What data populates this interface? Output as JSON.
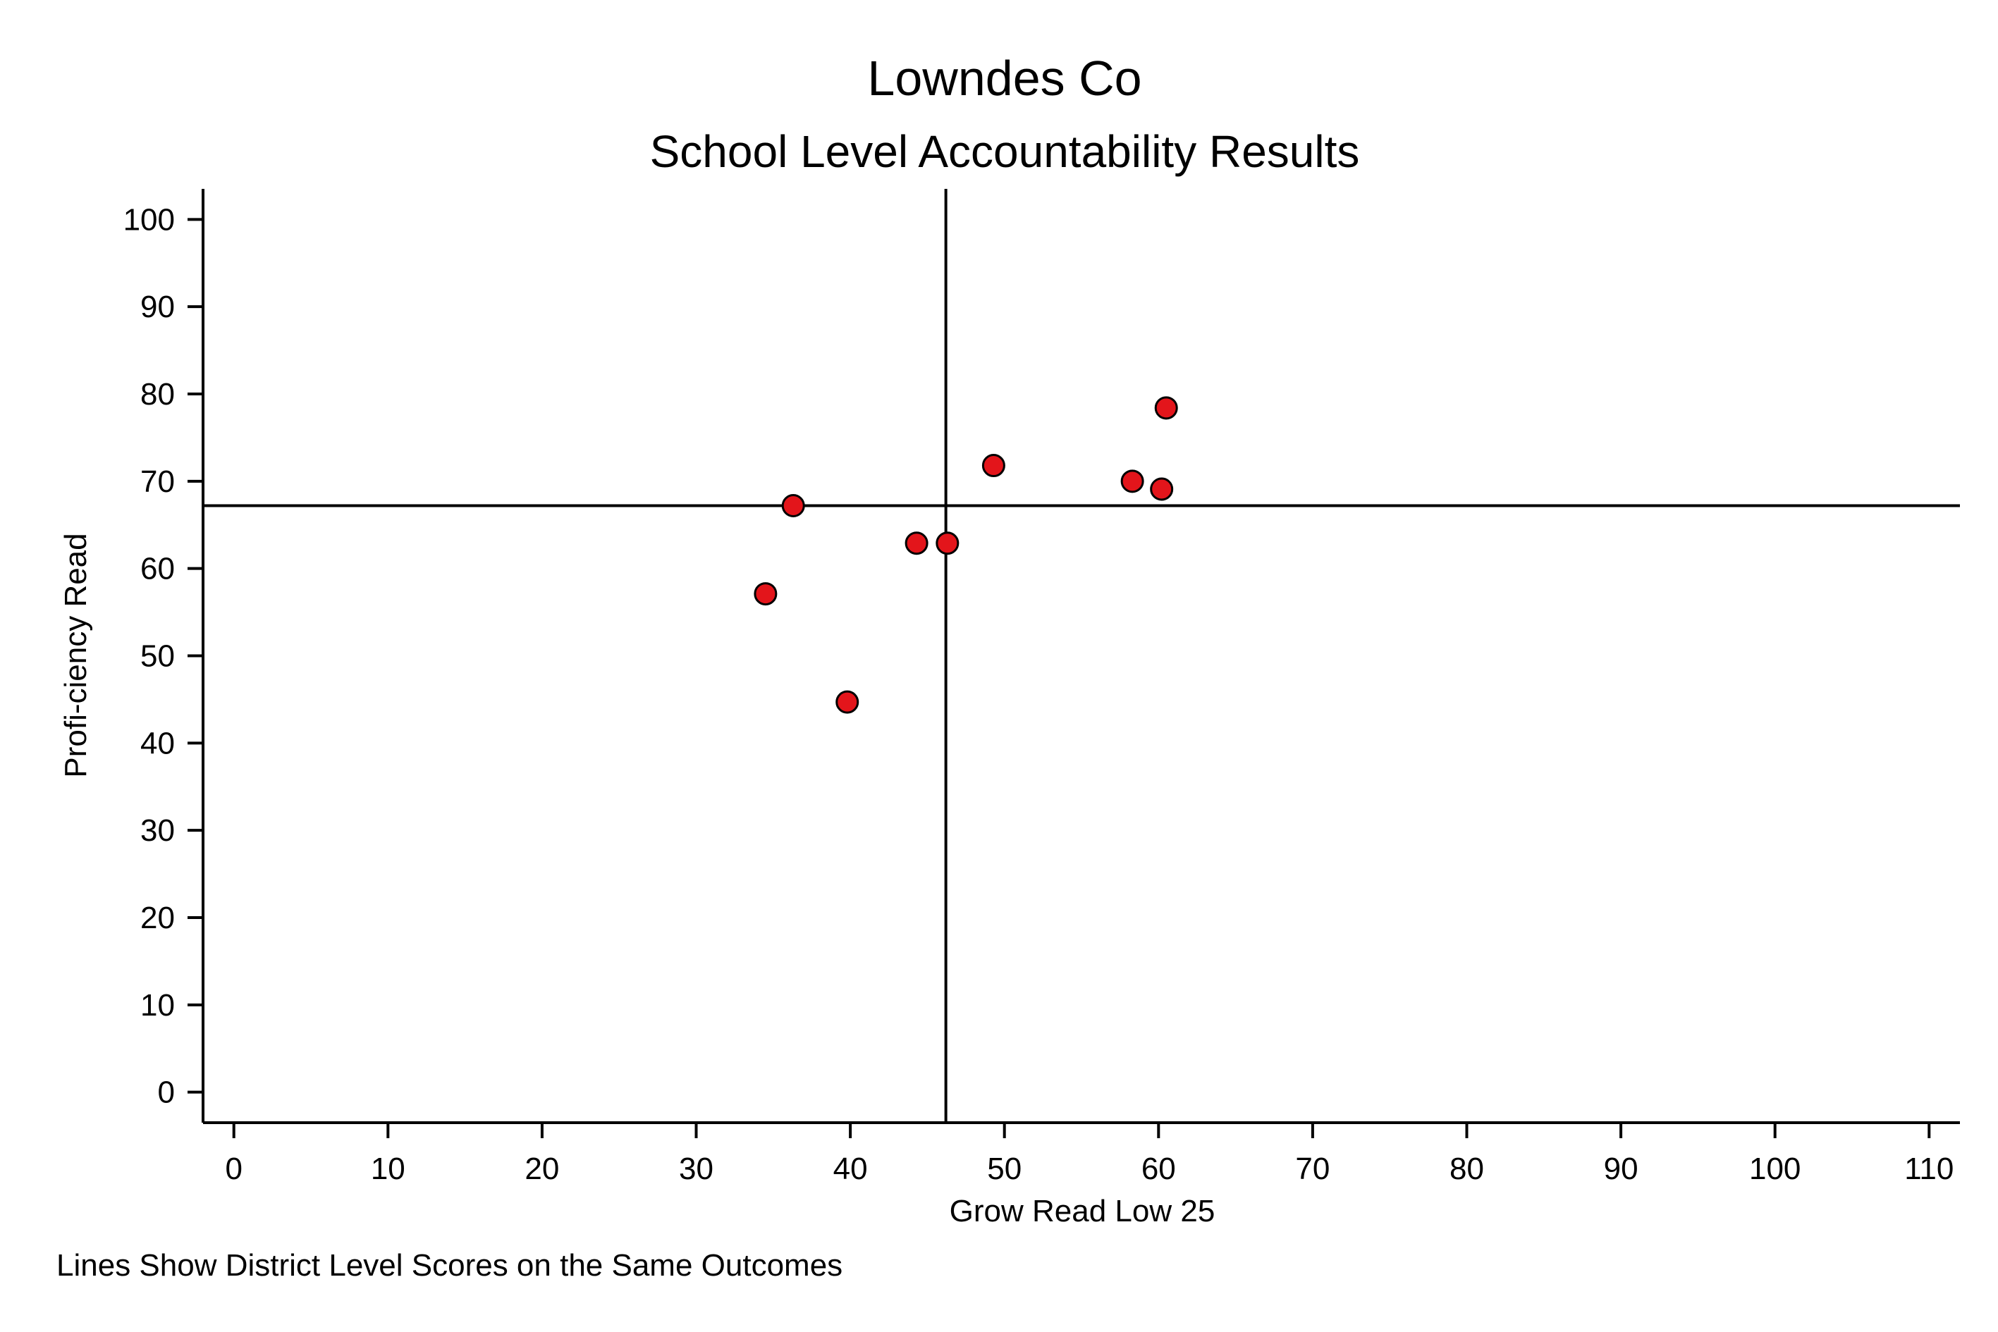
{
  "chart_data": {
    "type": "scatter",
    "title": "Lowndes Co",
    "subtitle": "School Level Accountability Results",
    "xlabel": "Grow Read Low 25",
    "ylabel": "Profi-ciency Read",
    "note": "Lines Show District Level Scores on the Same Outcomes",
    "xlim": [
      -2,
      112
    ],
    "ylim": [
      -3.5,
      103.5
    ],
    "x_ticks": [
      0,
      10,
      20,
      30,
      40,
      50,
      60,
      70,
      80,
      90,
      100,
      110
    ],
    "y_ticks": [
      0,
      10,
      20,
      30,
      40,
      50,
      60,
      70,
      80,
      90,
      100
    ],
    "reference_lines": {
      "x": 46.2,
      "y": 67.2
    },
    "points": [
      {
        "x": 34.5,
        "y": 57.1
      },
      {
        "x": 36.3,
        "y": 67.2
      },
      {
        "x": 39.8,
        "y": 44.7
      },
      {
        "x": 44.3,
        "y": 62.9
      },
      {
        "x": 46.3,
        "y": 62.9
      },
      {
        "x": 49.3,
        "y": 71.8
      },
      {
        "x": 58.3,
        "y": 70.0
      },
      {
        "x": 60.2,
        "y": 69.1
      },
      {
        "x": 60.5,
        "y": 78.4
      }
    ],
    "marker_fill": "#e3151b",
    "marker_stroke": "#000000",
    "grid": false
  }
}
